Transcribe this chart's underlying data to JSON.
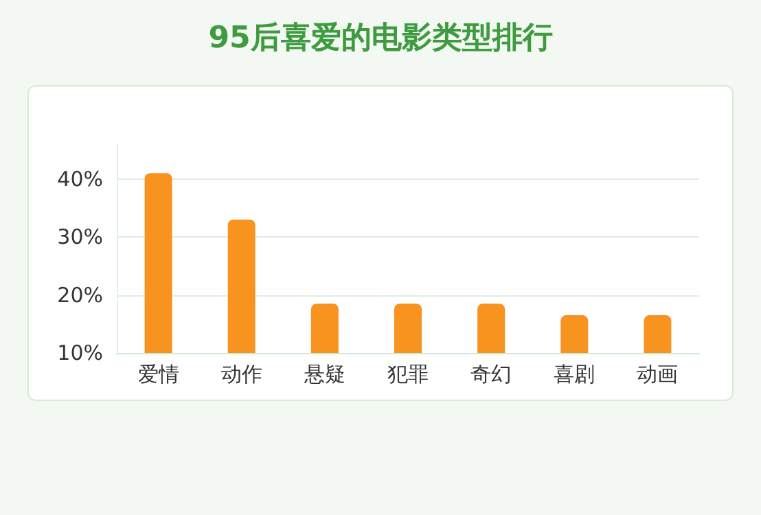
{
  "chart_data": {
    "type": "bar",
    "title": "95后喜爱的电影类型排行",
    "categories": [
      "爱情",
      "动作",
      "悬疑",
      "犯罪",
      "奇幻",
      "喜剧",
      "动画"
    ],
    "values": [
      41,
      33,
      18.5,
      18.5,
      18.5,
      16.5,
      16.5
    ],
    "color": "#f7931e",
    "ylim": [
      10,
      46
    ],
    "yticks": [
      {
        "value": 10,
        "label": "10%"
      },
      {
        "value": 20,
        "label": "20%"
      },
      {
        "value": 30,
        "label": "30%"
      },
      {
        "value": 40,
        "label": "40%"
      }
    ],
    "grid": "y"
  }
}
